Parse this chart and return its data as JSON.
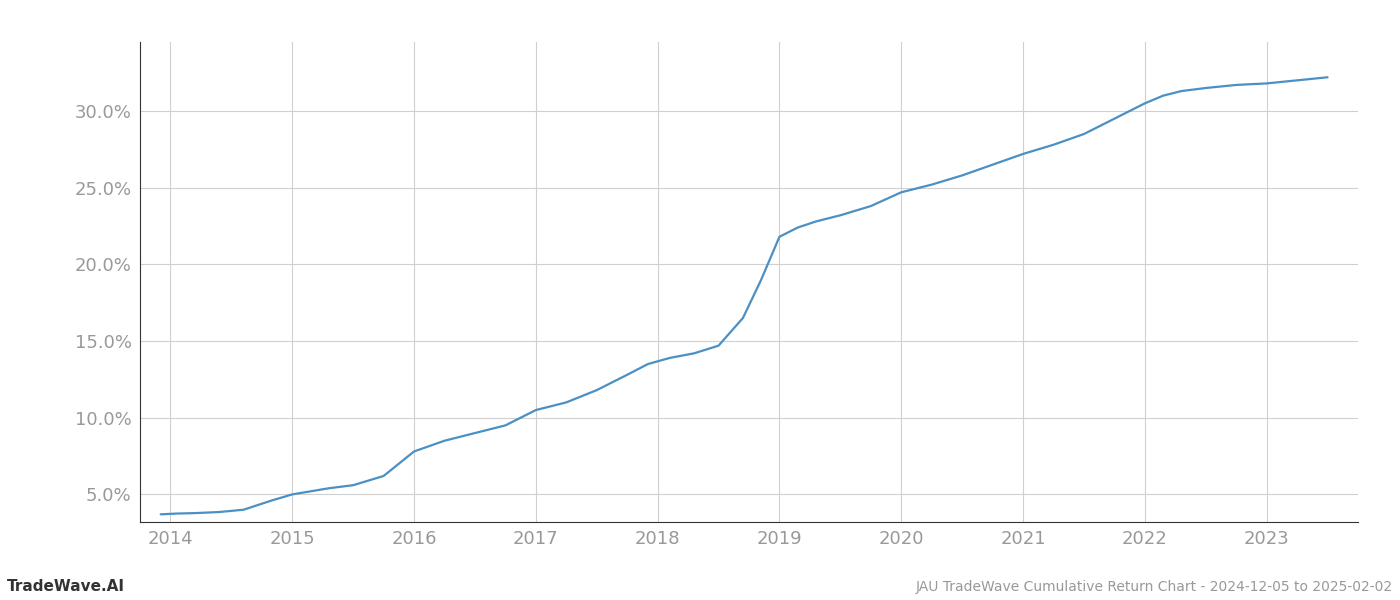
{
  "title": "JAU TradeWave Cumulative Return Chart - 2024-12-05 to 2025-02-02",
  "watermark": "TradeWave.AI",
  "line_color": "#4a90c4",
  "background_color": "#ffffff",
  "grid_color": "#d0d0d0",
  "x_years": [
    2014,
    2015,
    2016,
    2017,
    2018,
    2019,
    2020,
    2021,
    2022,
    2023
  ],
  "data_x": [
    2013.92,
    2014.05,
    2014.2,
    2014.4,
    2014.6,
    2014.83,
    2015.0,
    2015.15,
    2015.3,
    2015.5,
    2015.75,
    2016.0,
    2016.25,
    2016.5,
    2016.75,
    2017.0,
    2017.25,
    2017.5,
    2017.75,
    2017.92,
    2018.1,
    2018.3,
    2018.5,
    2018.7,
    2018.85,
    2019.0,
    2019.15,
    2019.3,
    2019.5,
    2019.75,
    2020.0,
    2020.25,
    2020.5,
    2020.75,
    2021.0,
    2021.25,
    2021.5,
    2021.75,
    2022.0,
    2022.15,
    2022.3,
    2022.5,
    2022.75,
    2023.0,
    2023.25,
    2023.5
  ],
  "data_y": [
    3.7,
    3.75,
    3.78,
    3.85,
    4.0,
    4.6,
    5.0,
    5.2,
    5.4,
    5.6,
    6.2,
    7.8,
    8.5,
    9.0,
    9.5,
    10.5,
    11.0,
    11.8,
    12.8,
    13.5,
    13.9,
    14.2,
    14.7,
    16.5,
    19.0,
    21.8,
    22.4,
    22.8,
    23.2,
    23.8,
    24.7,
    25.2,
    25.8,
    26.5,
    27.2,
    27.8,
    28.5,
    29.5,
    30.5,
    31.0,
    31.3,
    31.5,
    31.7,
    31.8,
    32.0,
    32.2
  ],
  "yticks": [
    5.0,
    10.0,
    15.0,
    20.0,
    25.0,
    30.0
  ],
  "ylim": [
    3.2,
    34.5
  ],
  "xlim": [
    2013.75,
    2023.75
  ],
  "tick_label_color": "#999999",
  "spine_color": "#333333",
  "title_fontsize": 10,
  "watermark_fontsize": 11,
  "tick_fontsize": 13,
  "line_width": 1.6
}
